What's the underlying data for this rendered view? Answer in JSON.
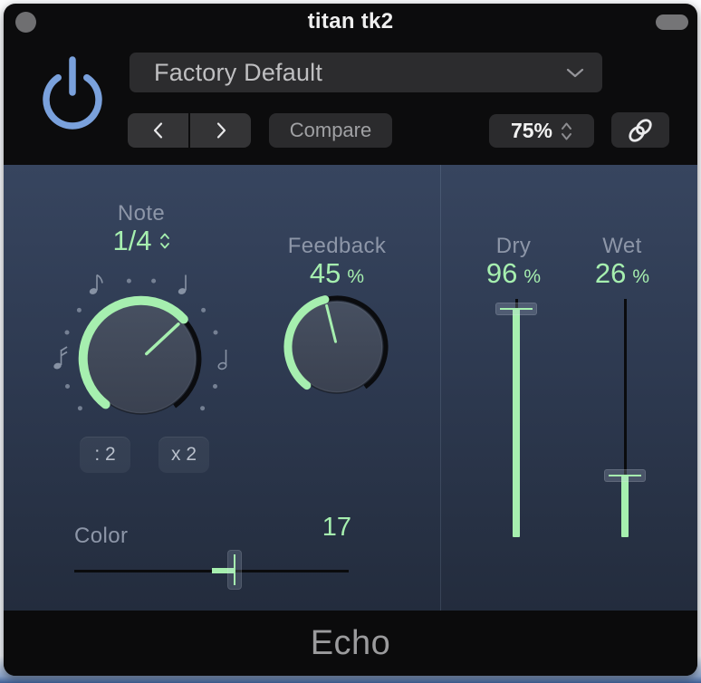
{
  "window": {
    "title": "titan tk2",
    "footer_plugin_name": "Echo"
  },
  "header": {
    "preset_selector": {
      "value": "Factory Default"
    },
    "compare_button": {
      "label": "Compare"
    },
    "scale_stepper": {
      "value": "75%"
    }
  },
  "left_panel": {
    "note": {
      "label": "Note",
      "value": "1/4"
    },
    "divide_button": {
      "label": ": 2"
    },
    "multiply_button": {
      "label": "x 2"
    },
    "feedback": {
      "label": "Feedback",
      "value": "45",
      "unit": "%"
    },
    "color": {
      "label": "Color",
      "value": "17"
    }
  },
  "right_panel": {
    "dry": {
      "label": "Dry",
      "value": "96",
      "unit": "%"
    },
    "wet": {
      "label": "Wet",
      "value": "26",
      "unit": "%"
    }
  },
  "icons": {
    "power": "power-icon",
    "preset_open": "chevron-down-icon",
    "prev": "chevron-left-icon",
    "next": "chevron-right-icon",
    "scale": "up-down-chevrons-icon",
    "link": "link-icon",
    "note_stepper": "up-down-chevrons-icon"
  },
  "colors": {
    "accent_green": "#a6efaf",
    "power_blue": "#7aa1dc",
    "panel_top": "#37455f",
    "panel_bottom": "#232c3d",
    "chrome_black": "#0c0c0d",
    "label_gray": "#8d96a8"
  }
}
